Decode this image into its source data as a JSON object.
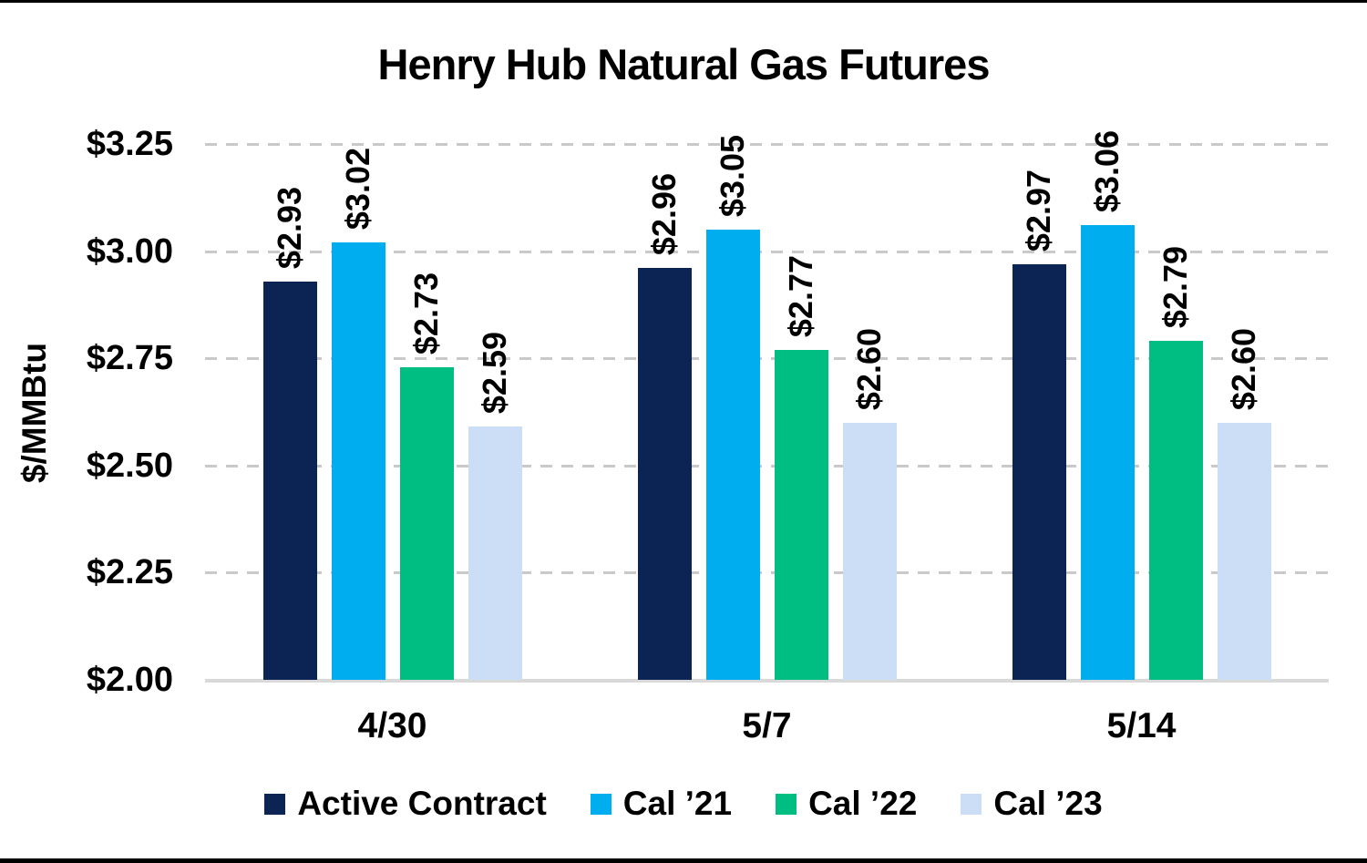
{
  "chart_data": {
    "type": "bar",
    "title": "Henry Hub Natural Gas Futures",
    "ylabel": "$/MMBtu",
    "xlabel": "",
    "categories": [
      "4/30",
      "5/7",
      "5/14"
    ],
    "series": [
      {
        "name": "Active Contract",
        "color": "#0b2453",
        "values": [
          2.93,
          2.96,
          2.97
        ],
        "labels": [
          "$2.93",
          "$2.96",
          "$2.97"
        ]
      },
      {
        "name": "Cal ’21",
        "color": "#00adee",
        "values": [
          3.02,
          3.05,
          3.06
        ],
        "labels": [
          "$3.02",
          "$3.05",
          "$3.06"
        ]
      },
      {
        "name": "Cal ’22",
        "color": "#00bd82",
        "values": [
          2.73,
          2.77,
          2.79
        ],
        "labels": [
          "$2.73",
          "$2.77",
          "$2.79"
        ]
      },
      {
        "name": "Cal ’23",
        "color": "#cbdef5",
        "values": [
          2.59,
          2.6,
          2.6
        ],
        "labels": [
          "$2.59",
          "$2.60",
          "$2.60"
        ]
      }
    ],
    "y_axis": {
      "min": 2.0,
      "max": 3.25,
      "step": 0.25,
      "tick_labels": [
        "$2.00",
        "$2.25",
        "$2.50",
        "$2.75",
        "$3.00",
        "$3.25"
      ]
    },
    "grid": "horizontal-dashed",
    "legend_position": "bottom",
    "colors": {
      "gridline": "#c9c9c9",
      "axis_line": "#d9d9d9",
      "text": "#000000",
      "background": "#ffffff"
    }
  }
}
